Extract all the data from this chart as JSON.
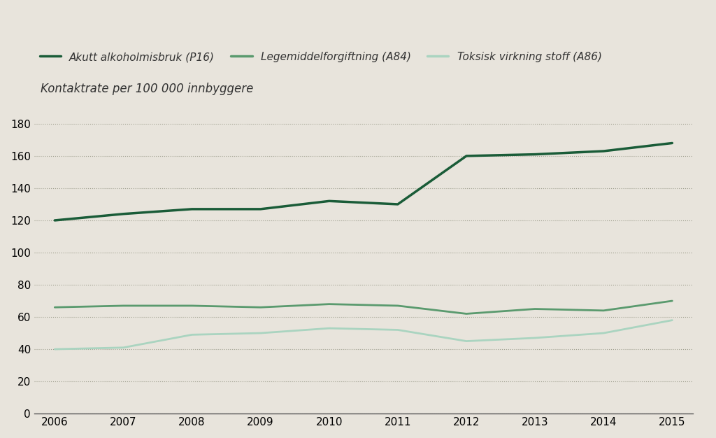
{
  "years": [
    2006,
    2007,
    2008,
    2009,
    2010,
    2011,
    2012,
    2013,
    2014,
    2015
  ],
  "series": {
    "P16": {
      "label": "Akutt alkoholmisbruk (P16)",
      "color": "#1a5c38",
      "linewidth": 2.5,
      "values": [
        120,
        124,
        127,
        127,
        132,
        130,
        160,
        161,
        163,
        168
      ]
    },
    "A84": {
      "label": "Legemiddelforgiftning (A84)",
      "color": "#5a9a6e",
      "linewidth": 2.0,
      "values": [
        66,
        67,
        67,
        66,
        68,
        67,
        62,
        65,
        64,
        70
      ]
    },
    "A86": {
      "label": "Toksisk virkning stoff (A86)",
      "color": "#aad4c0",
      "linewidth": 2.0,
      "values": [
        40,
        41,
        49,
        50,
        53,
        52,
        45,
        47,
        50,
        58
      ]
    }
  },
  "ylabel": "Kontaktrate per 100 000 innbyggere",
  "ylim": [
    0,
    190
  ],
  "yticks": [
    0,
    20,
    40,
    60,
    80,
    100,
    120,
    140,
    160,
    180
  ],
  "xlim": [
    2005.7,
    2015.3
  ],
  "background_color": "#e8e4dc",
  "plot_background_color": "#e8e4dc",
  "grid_color": "#a0a090",
  "title_fontsize": 12,
  "tick_fontsize": 11,
  "legend_fontsize": 11
}
